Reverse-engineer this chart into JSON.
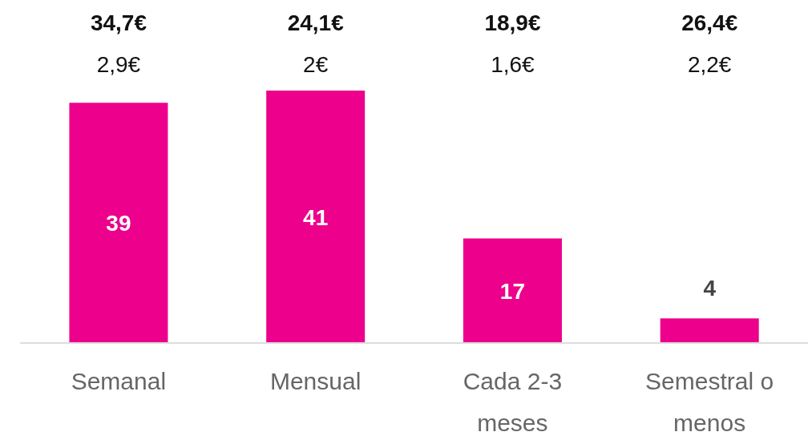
{
  "chart_data": {
    "type": "bar",
    "categories": [
      "Semanal",
      "Mensual",
      "Cada 2-3 meses",
      "Semestral o menos"
    ],
    "values": [
      39,
      41,
      17,
      4
    ],
    "color": "#ec008c",
    "data_labels": true,
    "annotations": [
      "34,7€",
      "2,9€",
      "24,1€",
      "2€",
      "18,9€",
      "1,6€",
      "26,4€",
      "2,2€"
    ]
  }
}
